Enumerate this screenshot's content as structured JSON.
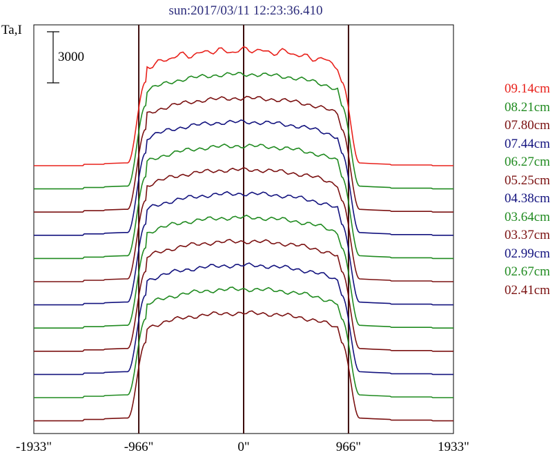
{
  "chart_data": {
    "type": "line",
    "title": "sun:2017/03/11 12:23:36.410",
    "ylabel": "Ta,I",
    "scale_bar": {
      "label": "3000",
      "value": 3000
    },
    "x_ticks": [
      {
        "value": -1933,
        "label": "-1933\""
      },
      {
        "value": -966,
        "label": "-966\""
      },
      {
        "value": 0,
        "label": "0\""
      },
      {
        "value": 966,
        "label": "966\""
      },
      {
        "value": 1933,
        "label": "1933\""
      }
    ],
    "xlim": [
      -1933,
      1933
    ],
    "vertical_lines": [
      -966,
      0,
      966
    ],
    "series": [
      {
        "name": "09.14cm",
        "color": "#e8201a"
      },
      {
        "name": "08.21cm",
        "color": "#1f8a1f"
      },
      {
        "name": "07.80cm",
        "color": "#7a1010"
      },
      {
        "name": "07.44cm",
        "color": "#12127e"
      },
      {
        "name": "06.27cm",
        "color": "#1f8a1f"
      },
      {
        "name": "05.25cm",
        "color": "#7a1010"
      },
      {
        "name": "04.38cm",
        "color": "#12127e"
      },
      {
        "name": "03.64cm",
        "color": "#1f8a1f"
      },
      {
        "name": "03.37cm",
        "color": "#7a1010"
      },
      {
        "name": "02.99cm",
        "color": "#12127e"
      },
      {
        "name": "02.67cm",
        "color": "#1f8a1f"
      },
      {
        "name": "02.41cm",
        "color": "#7a1010"
      }
    ]
  }
}
